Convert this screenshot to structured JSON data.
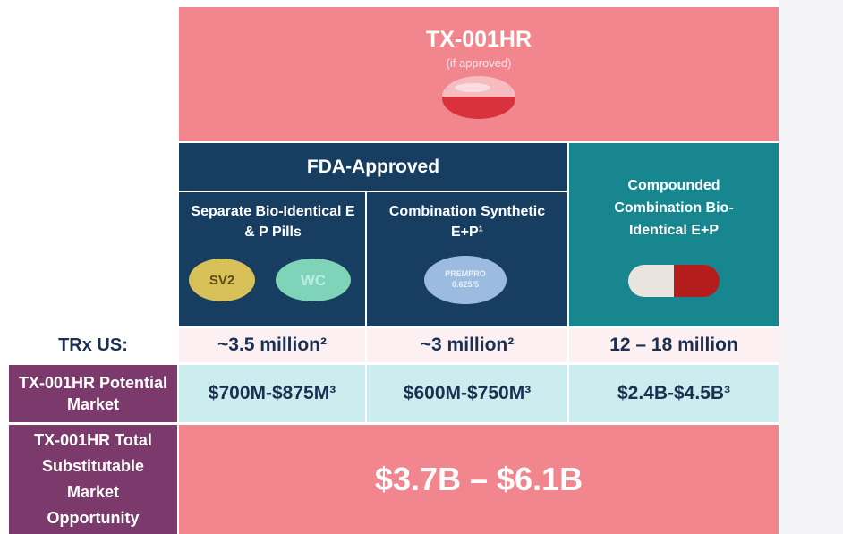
{
  "header": {
    "title": "TX-001HR",
    "subtitle": "(if approved)"
  },
  "group": {
    "label": "FDA-Approved"
  },
  "columns": [
    {
      "label": "Separate Bio-Identical E & P Pills",
      "pill_marks": [
        "SV2",
        "WC"
      ]
    },
    {
      "label": "Combination Synthetic E+P¹",
      "pill_marks": [
        "PREMPRO",
        "0.625/5"
      ]
    },
    {
      "label": "Compounded Combination Bio-Identical E+P"
    }
  ],
  "rows": [
    {
      "label": "TRx US:",
      "values": [
        "~3.5 million²",
        "~3 million²",
        "12 – 18 million"
      ]
    },
    {
      "label": "TX-001HR Potential Market",
      "values": [
        "$700M-$875M³",
        "$600M-$750M³",
        "$2.4B-$4.5B³"
      ]
    }
  ],
  "total": {
    "label": "TX-001HR Total Substitutable Market Opportunity",
    "value": "$3.7B – $6.1B"
  }
}
